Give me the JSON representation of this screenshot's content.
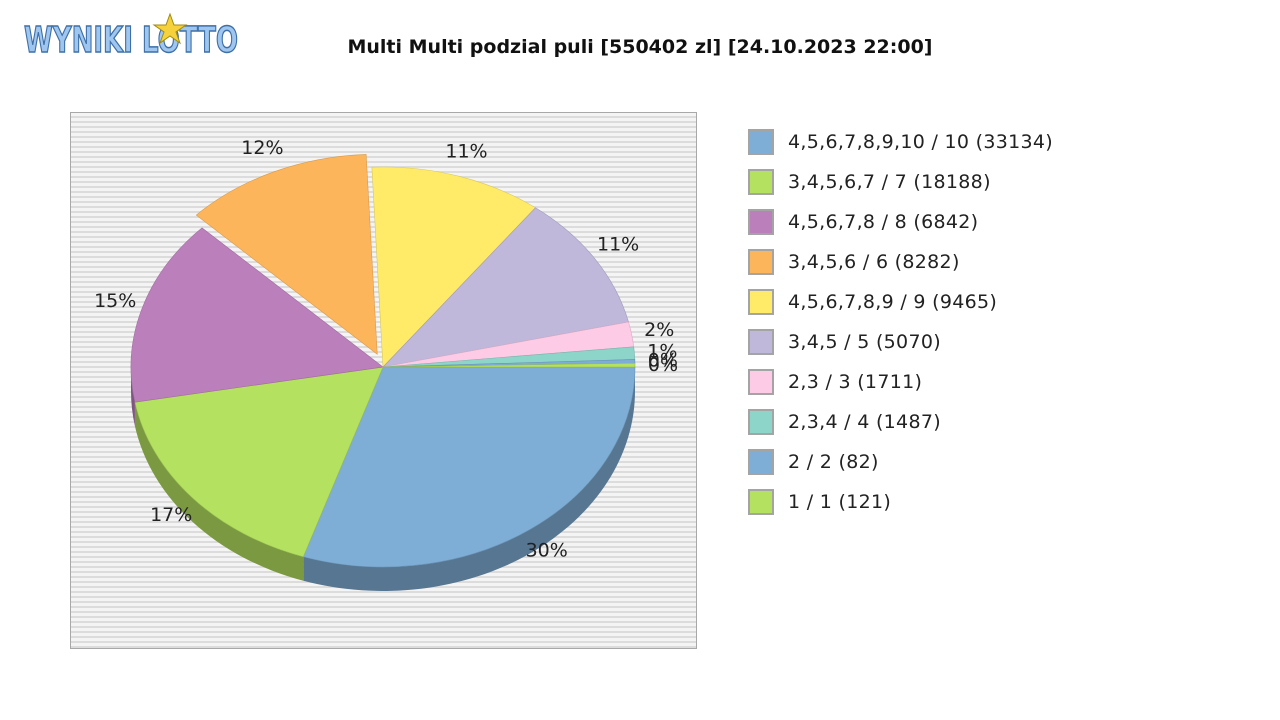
{
  "header": {
    "logo_text": "WYNIKI LOTTO",
    "title": "Multi Multi podzial puli [550402 zl] [24.10.2023 22:00]"
  },
  "colors": {
    "logo_fill": "#9fc6ee",
    "logo_outline": "#3d6fa8",
    "star": "#f5d23b"
  },
  "chart_data": {
    "type": "pie",
    "title": "Multi Multi podzial puli [550402 zl] [24.10.2023 22:00]",
    "three_d": true,
    "legend_position": "right",
    "slices": [
      {
        "label": "4,5,6,7,8,9,10 / 10 (33134)",
        "value": 33134,
        "pct_label": "30%",
        "color": "#7eadd5"
      },
      {
        "label": "3,4,5,6,7 / 7 (18188)",
        "value": 18188,
        "pct_label": "17%",
        "color": "#b4e15f"
      },
      {
        "label": "4,5,6,7,8 / 8 (6842)",
        "value": 6842,
        "pct_label": "15%",
        "color": "#bb7fbb"
      },
      {
        "label": "3,4,5,6 / 6 (8282)",
        "value": 8282,
        "pct_label": "12%",
        "color": "#fdb55b"
      },
      {
        "label": "4,5,6,7,8,9 / 9 (9465)",
        "value": 9465,
        "pct_label": "11%",
        "color": "#ffeb68"
      },
      {
        "label": "3,4,5 / 5 (5070)",
        "value": 5070,
        "pct_label": "11%",
        "color": "#bfb8db"
      },
      {
        "label": "2,3 / 3 (1711)",
        "value": 1711,
        "pct_label": "2%",
        "color": "#fdcbe5"
      },
      {
        "label": "2,3,4 / 4 (1487)",
        "value": 1487,
        "pct_label": "1%",
        "color": "#8ed5c9"
      },
      {
        "label": "2 / 2 (82)",
        "value": 82,
        "pct_label": "0%",
        "color": "#7eadd5"
      },
      {
        "label": "1 / 1 (121)",
        "value": 121,
        "pct_label": "0%",
        "color": "#b4e15f"
      }
    ],
    "visual_shares": [
      30,
      17,
      15,
      12,
      11,
      11,
      2,
      1,
      0.3,
      0.3
    ]
  }
}
